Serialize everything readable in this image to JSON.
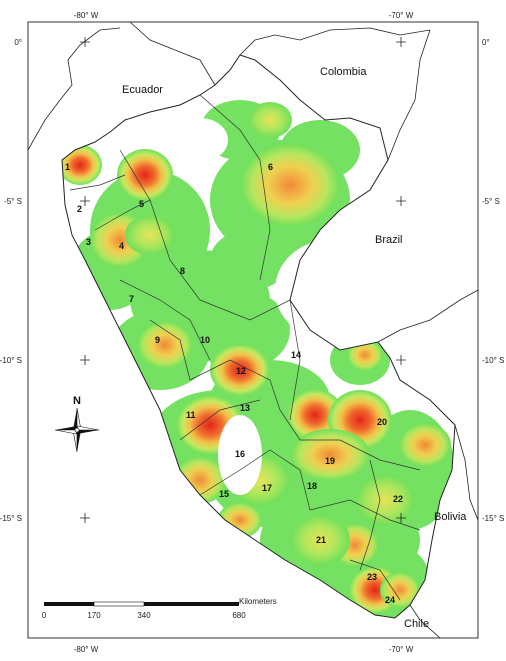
{
  "title": "",
  "coordinates": {
    "top": [
      "-80° W",
      "-70° W"
    ],
    "bottom": [
      "-80° W",
      "-70° W"
    ],
    "left": [
      "0°",
      "-5° S",
      "-10° S",
      "-15° S"
    ],
    "right": [
      "0°",
      "-5° S",
      "-10° S",
      "-15° S"
    ]
  },
  "countries": [
    "Ecuador",
    "Colombia",
    "Brazil",
    "Bolivia",
    "Chile"
  ],
  "regions": [
    "1",
    "2",
    "3",
    "4",
    "5",
    "6",
    "7",
    "8",
    "9",
    "10",
    "11",
    "12",
    "13",
    "14",
    "15",
    "16",
    "17",
    "18",
    "19",
    "20",
    "21",
    "22",
    "23",
    "24"
  ],
  "north_label": "N",
  "scale_bar": {
    "unit": "Kilometers",
    "ticks": [
      "0",
      "170",
      "340",
      "680"
    ]
  },
  "colors": {
    "low": "#66e05a",
    "low_mid": "#a8e85a",
    "mid": "#e8e85a",
    "high": "#f0a040",
    "peak": "#e83020",
    "border": "#333333"
  }
}
